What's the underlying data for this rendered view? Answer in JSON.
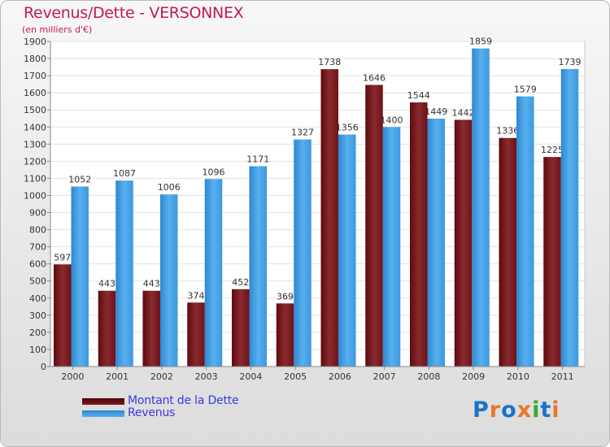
{
  "chart_data": {
    "type": "bar",
    "title": "Revenus/Dette - VERSONNEX",
    "subtitle": "(en milliers d'€)",
    "categories": [
      "2000",
      "2001",
      "2002",
      "2003",
      "2004",
      "2005",
      "2006",
      "2007",
      "2008",
      "2009",
      "2010",
      "2011"
    ],
    "series": [
      {
        "name": "Montant de la Dette",
        "values": [
          597,
          443,
          443,
          374,
          452,
          369,
          1738,
          1646,
          1544,
          1442,
          1336,
          1225
        ],
        "color": "#7b1a1f"
      },
      {
        "name": "Revenus",
        "values": [
          1052,
          1087,
          1006,
          1096,
          1171,
          1327,
          1356,
          1400,
          1449,
          1859,
          1579,
          1739
        ],
        "color": "#3b99e0"
      }
    ],
    "ylim": [
      0,
      1900
    ],
    "ytick_step": 100,
    "grid": true,
    "legend_position": "bottom-left"
  },
  "branding": {
    "logo_text": "Proxiti",
    "logo_colors": [
      "#1a73c9",
      "#e8762c",
      "#1a73c9",
      "#e8762c",
      "#3aa635",
      "#1a73c9",
      "#e8762c"
    ]
  }
}
